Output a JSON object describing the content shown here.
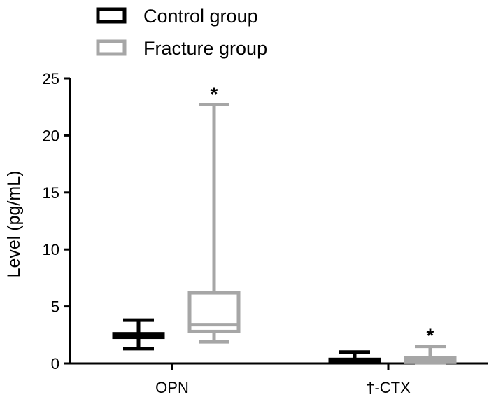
{
  "chart_data": {
    "type": "boxplot",
    "title": "",
    "xlabel": "",
    "ylabel": "Level (pg/mL)",
    "ylim": [
      0,
      25
    ],
    "yticks": [
      0,
      5,
      10,
      15,
      20,
      25
    ],
    "grid": false,
    "legend_position": "top-left",
    "categories": [
      "OPN",
      "†-CTX"
    ],
    "series": [
      {
        "name": "Control group",
        "color": "#000000",
        "boxes": [
          {
            "min": 1.3,
            "q1": 2.3,
            "median": 2.45,
            "q3": 2.6,
            "max": 3.8,
            "annotation": ""
          },
          {
            "min": 0.1,
            "q1": 0.15,
            "median": 0.25,
            "q3": 0.35,
            "max": 1.0,
            "annotation": ""
          }
        ]
      },
      {
        "name": "Fracture group",
        "color": "#a6a6a6",
        "boxes": [
          {
            "min": 1.9,
            "q1": 2.8,
            "median": 3.4,
            "q3": 6.2,
            "max": 22.7,
            "annotation": "*"
          },
          {
            "min": 0.05,
            "q1": 0.1,
            "median": 0.3,
            "q3": 0.5,
            "max": 1.5,
            "annotation": "*"
          }
        ]
      }
    ]
  }
}
